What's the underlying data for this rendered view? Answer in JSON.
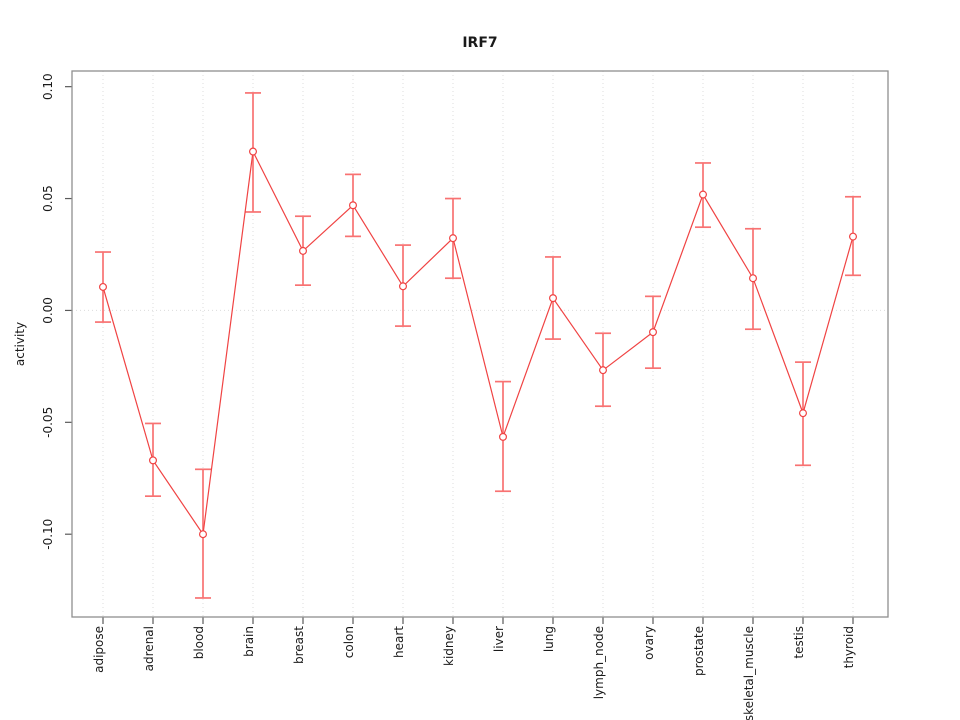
{
  "chart_data": {
    "type": "line",
    "title": "IRF7",
    "xlabel": "",
    "ylabel": "activity",
    "categories": [
      "adipose",
      "adrenal",
      "blood",
      "brain",
      "breast",
      "colon",
      "heart",
      "kidney",
      "liver",
      "lung",
      "lymph_node",
      "ovary",
      "prostate",
      "skeletal_muscle",
      "testis",
      "thyroid"
    ],
    "series": [
      {
        "name": "activity",
        "values": [
          0.0105,
          -0.067,
          -0.1,
          0.071,
          0.0266,
          0.047,
          0.0108,
          0.0323,
          -0.0565,
          0.0055,
          -0.0267,
          -0.0097,
          0.0518,
          0.0144,
          -0.0459,
          0.033
        ],
        "error_low": [
          -0.0052,
          -0.083,
          -0.1285,
          0.044,
          0.0113,
          0.0331,
          -0.007,
          0.0144,
          -0.0808,
          -0.0128,
          -0.0428,
          -0.0258,
          0.0372,
          -0.0084,
          -0.0692,
          0.0157
        ],
        "error_high": [
          0.0261,
          -0.0505,
          -0.071,
          0.0972,
          0.0421,
          0.0608,
          0.0292,
          0.05,
          -0.0318,
          0.0239,
          -0.0102,
          0.0063,
          0.0659,
          0.0365,
          -0.0231,
          0.0508
        ]
      }
    ],
    "y_tick_labels": [
      "-0.10",
      "-0.05",
      "0.00",
      "0.05",
      "0.10"
    ],
    "y_tick_values": [
      -0.1,
      -0.05,
      0.0,
      0.05,
      0.1
    ],
    "ylim": [
      -0.137,
      0.107
    ],
    "legend": "none",
    "grid": "dotted vertical line at each category; dotted horizontal line at y=0",
    "marker": "open-circle",
    "colors": {
      "line": "#f04343",
      "point_stroke": "#f04343",
      "point_fill": "#ffffff",
      "error_bar": "#f87272",
      "grid": "#dcdcdc",
      "box": "#8f8f8f",
      "axis": "#5a5a5a",
      "text": "#1a1a1a",
      "background": "#ffffff"
    }
  }
}
